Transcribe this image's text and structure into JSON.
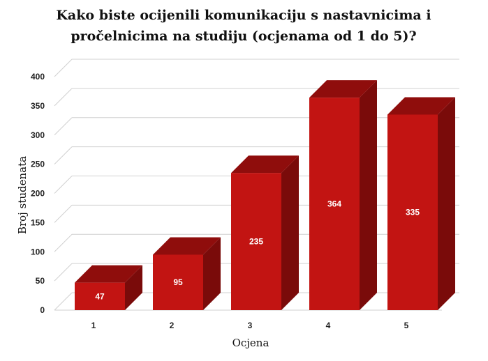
{
  "chart_data": {
    "type": "bar",
    "title": "Kako biste ocijenili komunikaciju s nastavnicima i pročelnicima na studiju (ocjenama od 1 do 5)?",
    "title_lines": [
      "Kako biste ocijenili komunikaciju s nastavnicima i",
      "pročelnicima na studiju (ocjenama od 1 do 5)?"
    ],
    "xlabel": "Ocjena",
    "ylabel": "Broj studenata",
    "categories": [
      "1",
      "2",
      "3",
      "4",
      "5"
    ],
    "values": [
      47,
      95,
      235,
      364,
      335
    ],
    "ylim": [
      0,
      400
    ],
    "yticks": [
      0,
      50,
      100,
      150,
      200,
      250,
      300,
      350,
      400
    ],
    "grid": true,
    "legend": "none",
    "style": "3d"
  },
  "colors": {
    "bar_front": "#c21412",
    "bar_top": "#8f0d0c",
    "bar_side": "#7a0b0a",
    "grid": "#d0d0d0",
    "floor": "#cfcfcf"
  }
}
